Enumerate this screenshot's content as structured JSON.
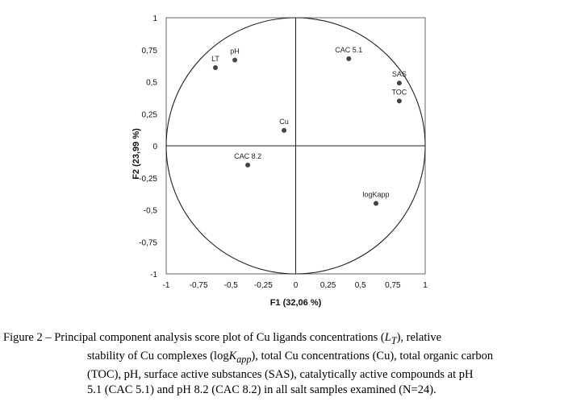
{
  "chart_data": {
    "type": "scatter",
    "title": "",
    "xlabel": "F1 (32,06 %)",
    "ylabel": "F2 (23,99 %)",
    "xlim": [
      -1,
      1
    ],
    "ylim": [
      -1,
      1
    ],
    "xticks": [
      "-1",
      "-0,75",
      "-0,5",
      "-0,25",
      "0",
      "0,25",
      "0,5",
      "0,75",
      "1"
    ],
    "yticks": [
      "1",
      "0,75",
      "0,5",
      "0,25",
      "0",
      "-0,25",
      "-0,5",
      "-0,75",
      "-1"
    ],
    "grid": false,
    "correlation_circle": true,
    "points": [
      {
        "label": "LT",
        "x": -0.62,
        "y": 0.61
      },
      {
        "label": "pH",
        "x": -0.47,
        "y": 0.67
      },
      {
        "label": "CAC 5.1",
        "x": 0.41,
        "y": 0.68
      },
      {
        "label": "SAS",
        "x": 0.8,
        "y": 0.49
      },
      {
        "label": "TOC",
        "x": 0.8,
        "y": 0.35
      },
      {
        "label": "Cu",
        "x": -0.09,
        "y": 0.12
      },
      {
        "label": "CAC 8.2",
        "x": -0.37,
        "y": -0.15
      },
      {
        "label": "logKapp",
        "x": 0.62,
        "y": -0.45
      }
    ]
  },
  "caption": {
    "prefix": "Figure 2 – Principal component analysis score plot of Cu ligands concentrations (",
    "lt_main": "L",
    "lt_sub": "T",
    "after_lt": "), relative",
    "line2_a": "stability of Cu complexes (log",
    "k_main": "K",
    "k_sub": "app",
    "line2_b": "), total Cu concentrations (Cu), total organic carbon",
    "line3": "(TOC), pH, surface active substances (SAS), catalytically active compounds at pH",
    "line4": "5.1 (CAC 5.1) and pH 8.2 (CAC 8.2) in all salt samples examined (N=24)."
  }
}
